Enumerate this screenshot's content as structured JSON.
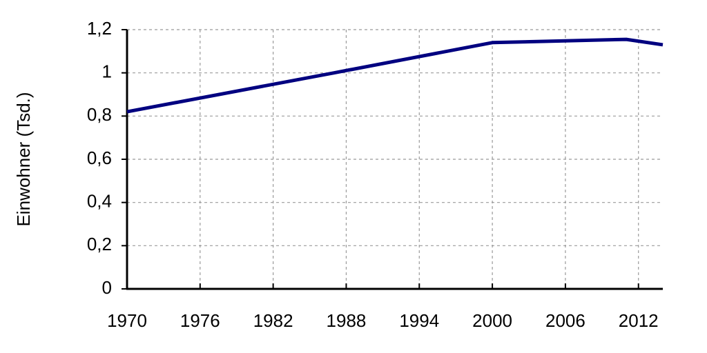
{
  "chart_data": {
    "type": "line",
    "y_label": "Einwohner (Tsd.)",
    "x": [
      1970,
      1987,
      2000,
      2011,
      2014
    ],
    "series": [
      {
        "color": "#000080",
        "values": [
          0.82,
          1.0,
          1.14,
          1.155,
          1.13
        ]
      }
    ],
    "xlim": [
      1970,
      2014
    ],
    "xticks": [
      1970,
      1976,
      1982,
      1988,
      1994,
      2000,
      2006,
      2012
    ],
    "ylim": [
      0,
      1.2
    ],
    "yticks": [
      0,
      {
        "value": 0.2,
        "label": "0,2"
      },
      {
        "value": 0.4,
        "label": "0,4"
      },
      {
        "value": 0.6,
        "label": "0,6"
      },
      {
        "value": 0.8,
        "label": "0,8"
      },
      1,
      {
        "value": 1.2,
        "label": "1,2"
      }
    ],
    "grid": true
  }
}
